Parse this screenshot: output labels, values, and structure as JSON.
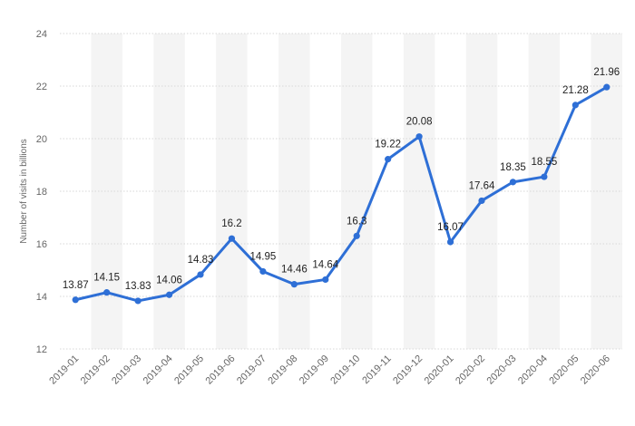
{
  "chart_data": {
    "type": "line",
    "title": "",
    "xlabel": "",
    "ylabel": "Number of visits in billions",
    "ylim": [
      12,
      24
    ],
    "yticks": [
      12,
      14,
      16,
      18,
      20,
      22,
      24
    ],
    "grid": true,
    "categories": [
      "2019-01",
      "2019-02",
      "2019-03",
      "2019-04",
      "2019-05",
      "2019-06",
      "2019-07",
      "2019-08",
      "2019-09",
      "2019-10",
      "2019-11",
      "2019-12",
      "2020-01",
      "2020-02",
      "2020-03",
      "2020-04",
      "2020-05",
      "2020-06"
    ],
    "series": [
      {
        "values": [
          13.87,
          14.15,
          13.83,
          14.06,
          14.83,
          16.2,
          14.95,
          14.46,
          14.64,
          16.3,
          19.22,
          20.08,
          16.07,
          17.64,
          18.35,
          18.55,
          21.28,
          21.96
        ],
        "labels": [
          "13.87",
          "14.15",
          "13.83",
          "14.06",
          "14.83",
          "16.2",
          "14.95",
          "14.46",
          "14.64",
          "16.3",
          "19.22",
          "20.08",
          "16.07",
          "17.64",
          "18.35",
          "18.55",
          "21.28",
          "21.96"
        ],
        "color": "#2e6fd6"
      }
    ],
    "colors": {
      "band": "#f4f4f4",
      "grid": "#d7d7d7",
      "text": "#666666"
    }
  }
}
